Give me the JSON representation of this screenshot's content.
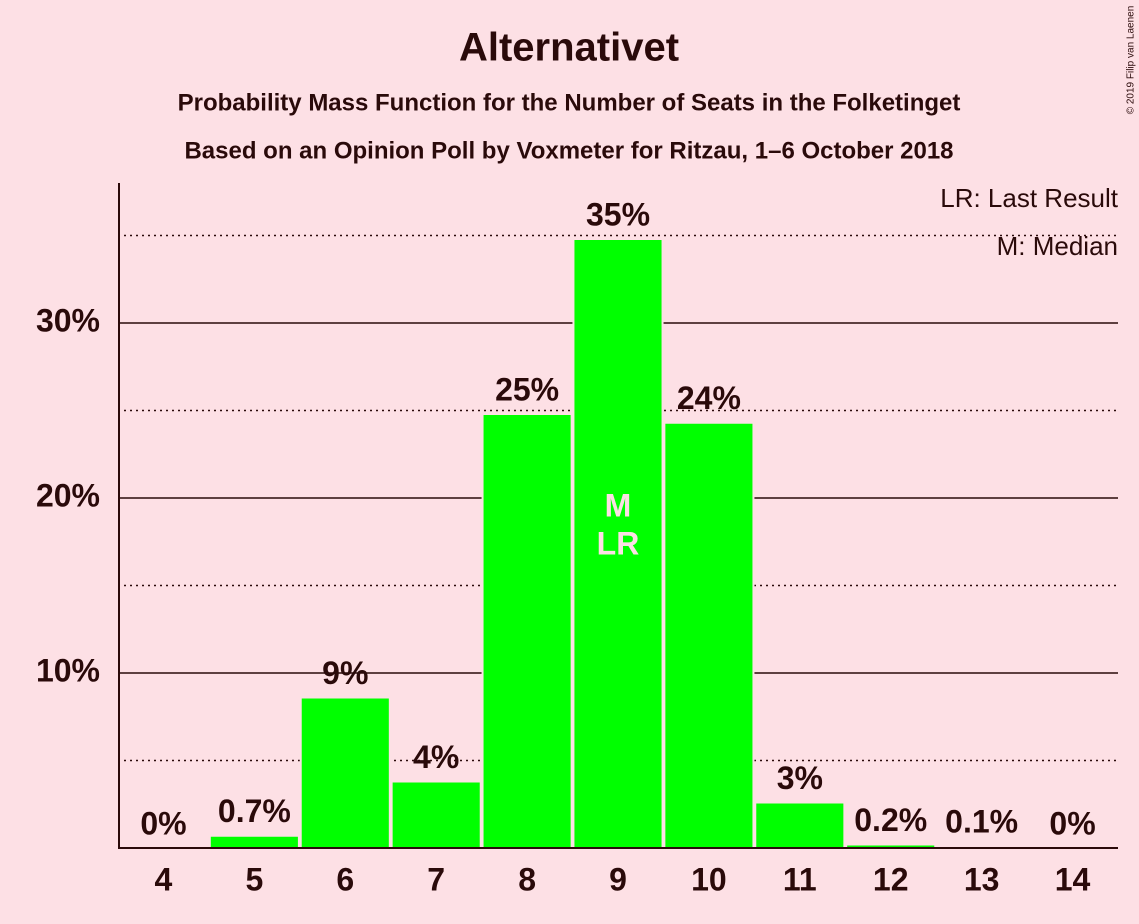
{
  "chart_data": {
    "type": "bar",
    "title": "Alternativet",
    "subtitle": "Probability Mass Function for the Number of Seats in the Folketinget",
    "subtitle2": "Based on an Opinion Poll by Voxmeter for Ritzau, 1–6 October 2018",
    "copyright": "© 2019 Filip van Laenen",
    "categories": [
      "4",
      "5",
      "6",
      "7",
      "8",
      "9",
      "10",
      "11",
      "12",
      "13",
      "14"
    ],
    "values": [
      0,
      0.7,
      8.6,
      3.8,
      24.8,
      34.8,
      24.3,
      2.6,
      0.2,
      0.1,
      0
    ],
    "value_labels": [
      "0%",
      "0.7%",
      "9%",
      "4%",
      "25%",
      "35%",
      "24%",
      "3%",
      "0.2%",
      "0.1%",
      "0%"
    ],
    "color": "#00ff00",
    "ylim": [
      0,
      38
    ],
    "yticks": [
      {
        "value": 10,
        "label": "10%"
      },
      {
        "value": 20,
        "label": "20%"
      },
      {
        "value": 30,
        "label": "30%"
      }
    ],
    "minor_yticks": [
      5,
      15,
      25,
      35
    ],
    "grid": true,
    "markers": [
      {
        "label": "M",
        "category": "9"
      },
      {
        "label": "LR",
        "category": "9"
      }
    ],
    "legend_entries": [
      "LR: Last Result",
      "M: Median"
    ],
    "legend_position": "top-right"
  }
}
